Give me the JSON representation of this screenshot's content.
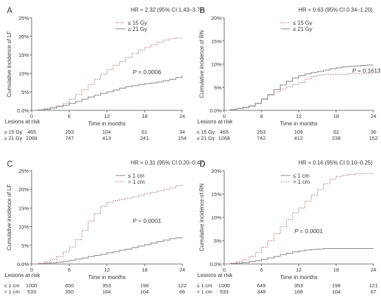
{
  "colors": {
    "line_low": "#858585",
    "line_high": "#b87a7e",
    "axis": "#444444",
    "text": "#333333"
  },
  "chart_data": [
    {
      "type": "line",
      "panel_label": "A",
      "hr_text": "HR = 2.32 (95% CI 1.43–3.77)",
      "p_value": "P = 0.0006",
      "ylabel": "Cumulative incidence of LF",
      "xlabel": "Time in months",
      "xlim": [
        0,
        24
      ],
      "ylim": [
        0,
        25
      ],
      "x_ticks": [
        0,
        6,
        12,
        18,
        24
      ],
      "y_ticks": [
        0,
        5,
        10,
        15,
        20,
        25
      ],
      "y_tick_labels": [
        "0.0%",
        "5%",
        "10%",
        "15%",
        "20%",
        "25%"
      ],
      "series": [
        {
          "name": "≤ 15 Gy",
          "style": "dashed",
          "x": [
            0,
            1,
            2,
            3,
            4,
            5,
            6,
            7,
            8,
            9,
            10,
            11,
            12,
            13,
            14,
            15,
            16,
            17,
            18,
            19,
            20,
            21,
            22,
            23,
            24
          ],
          "y": [
            0,
            0.2,
            0.5,
            0.9,
            1.3,
            1.9,
            3,
            4.3,
            5.6,
            7,
            8.4,
            9.8,
            11,
            12.2,
            13.2,
            14.3,
            15.4,
            16.3,
            17,
            17.7,
            18.4,
            19,
            19.4,
            19.6,
            19.7
          ]
        },
        {
          "name": "≥ 21 Gy",
          "style": "solid",
          "x": [
            0,
            1,
            2,
            3,
            4,
            5,
            6,
            7,
            8,
            9,
            10,
            11,
            12,
            13,
            14,
            15,
            16,
            17,
            18,
            19,
            20,
            21,
            22,
            23,
            24
          ],
          "y": [
            0,
            0.1,
            0.3,
            0.6,
            1,
            1.4,
            1.9,
            2.4,
            3,
            3.6,
            4.1,
            4.6,
            5,
            5.5,
            6,
            6.4,
            6.7,
            7,
            7.2,
            7.4,
            7.7,
            8,
            8.4,
            8.9,
            9.4
          ]
        }
      ],
      "risk_table": {
        "title": "Lesions at risk",
        "rows": [
          {
            "label": "≤ 15 Gy",
            "values": [
              "465",
              "253",
              "104",
              "61",
              "34"
            ]
          },
          {
            "label": "≥ 21 Gy",
            "values": [
              "1068",
              "747",
              "413",
              "241",
              "154"
            ]
          }
        ]
      }
    },
    {
      "type": "line",
      "panel_label": "B",
      "hr_text": "HR = 0.63 (95% CI 0.34–1.20)",
      "p_value": "P = 0.1613",
      "ylabel": "Cumulative incidence of RN",
      "xlabel": "Time in months",
      "xlim": [
        0,
        24
      ],
      "ylim": [
        0,
        20
      ],
      "x_ticks": [
        0,
        6,
        12,
        18,
        24
      ],
      "y_ticks": [
        0,
        5,
        10,
        15,
        20
      ],
      "y_tick_labels": [
        "0.0%",
        "5%",
        "10%",
        "15%",
        "20%"
      ],
      "series": [
        {
          "name": "≤ 15 Gy",
          "style": "dashed",
          "x": [
            0,
            1,
            2,
            3,
            4,
            5,
            6,
            7,
            8,
            9,
            10,
            11,
            12,
            13,
            14,
            15,
            16,
            17,
            18,
            19,
            20,
            21,
            22,
            23,
            24
          ],
          "y": [
            0,
            0.2,
            0.4,
            0.7,
            1,
            1.6,
            2.5,
            3.3,
            4,
            4.6,
            5.1,
            5.6,
            6,
            6.8,
            7.3,
            7.6,
            7.8,
            7.8,
            7.8,
            7.8,
            7.9,
            7.9,
            7.9,
            7.9,
            7.9
          ]
        },
        {
          "name": "≥ 21 Gy",
          "style": "solid",
          "x": [
            0,
            1,
            2,
            3,
            4,
            5,
            6,
            7,
            8,
            9,
            10,
            11,
            12,
            13,
            14,
            15,
            16,
            17,
            18,
            19,
            20,
            21,
            22,
            23,
            24
          ],
          "y": [
            0,
            0.2,
            0.4,
            0.6,
            0.9,
            1.5,
            2.4,
            3.4,
            4.5,
            5.5,
            6.3,
            7,
            7.5,
            7.9,
            8.2,
            8.4,
            8.7,
            9,
            9.2,
            9.4,
            9.5,
            9.6,
            9.7,
            9.8,
            9.8
          ]
        }
      ],
      "risk_table": {
        "title": "Lesions at risk",
        "rows": [
          {
            "label": "≤ 15 Gy",
            "values": [
              "465",
              "253",
              "109",
              "62",
              "36"
            ]
          },
          {
            "label": "≥ 21 Gy",
            "values": [
              "1068",
              "742",
              "412",
              "238",
              "152"
            ]
          }
        ]
      }
    },
    {
      "type": "line",
      "panel_label": "C",
      "hr_text": "HR = 0.31 (95% CI 0.20–0.47)",
      "p_value": "P < 0.0001",
      "ylabel": "Cumulative incidence of LF",
      "xlabel": "Time in months",
      "xlim": [
        0,
        24
      ],
      "ylim": [
        0,
        25
      ],
      "x_ticks": [
        0,
        6,
        12,
        18,
        24
      ],
      "y_ticks": [
        0,
        5,
        10,
        15,
        20,
        25
      ],
      "y_tick_labels": [
        "0.0%",
        "5%",
        "10%",
        "15%",
        "20%",
        "25%"
      ],
      "series": [
        {
          "name": "≤ 1 cm",
          "style": "solid",
          "x": [
            0,
            1,
            2,
            3,
            4,
            5,
            6,
            7,
            8,
            9,
            10,
            11,
            12,
            13,
            14,
            15,
            16,
            17,
            18,
            19,
            20,
            21,
            22,
            23,
            24
          ],
          "y": [
            0,
            0.1,
            0.2,
            0.3,
            0.5,
            0.7,
            1,
            1.3,
            1.6,
            2,
            2.3,
            2.6,
            3,
            3.3,
            3.7,
            4,
            4.4,
            4.8,
            5.2,
            5.6,
            6,
            6.4,
            6.8,
            7,
            7.1
          ]
        },
        {
          "name": "> 1 cm",
          "style": "dashed",
          "x": [
            0,
            1,
            2,
            3,
            4,
            5,
            6,
            7,
            8,
            9,
            10,
            11,
            12,
            13,
            14,
            15,
            16,
            17,
            18,
            19,
            20,
            21,
            22,
            23,
            24
          ],
          "y": [
            0,
            0.2,
            0.6,
            1.2,
            2,
            3.2,
            4.6,
            6.5,
            9,
            11.5,
            13.5,
            15.5,
            16.5,
            17,
            17.3,
            17.6,
            18,
            18.4,
            18.8,
            19.2,
            19.6,
            20,
            20.4,
            21,
            21.5
          ]
        }
      ],
      "risk_table": {
        "title": "Lesions at risk",
        "rows": [
          {
            "label": "≤ 1 cm",
            "values": [
              "1000",
              "650",
              "353",
              "198",
              "122"
            ]
          },
          {
            "label": "> 1 cm",
            "values": [
              "533",
              "350",
              "164",
              "104",
              "66"
            ]
          }
        ]
      }
    },
    {
      "type": "line",
      "panel_label": "D",
      "hr_text": "HR = 0.16 (95% CI 0.10–0.25)",
      "p_value": "P = 0.0001",
      "ylabel": "Cumulative incidence of RN",
      "xlabel": "Time in months",
      "xlim": [
        0,
        24
      ],
      "ylim": [
        0,
        20
      ],
      "x_ticks": [
        0,
        6,
        12,
        18,
        24
      ],
      "y_ticks": [
        0,
        5,
        10,
        15,
        20
      ],
      "y_tick_labels": [
        "0.0%",
        "5%",
        "10%",
        "15%",
        "20%"
      ],
      "series": [
        {
          "name": "≤ 1 cm",
          "style": "solid",
          "x": [
            0,
            1,
            2,
            3,
            4,
            5,
            6,
            7,
            8,
            9,
            10,
            11,
            12,
            13,
            14,
            15,
            16,
            17,
            18,
            19,
            20,
            21,
            22,
            23,
            24
          ],
          "y": [
            0,
            0.1,
            0.2,
            0.3,
            0.5,
            0.7,
            1,
            1.3,
            1.6,
            2,
            2.3,
            2.6,
            2.8,
            3,
            3.1,
            3.2,
            3.3,
            3.3,
            3.3,
            3.3,
            3.3,
            3.3,
            3.3,
            3.3,
            3.3
          ]
        },
        {
          "name": "> 1 cm",
          "style": "dashed",
          "x": [
            0,
            1,
            2,
            3,
            4,
            5,
            6,
            7,
            8,
            9,
            10,
            11,
            12,
            13,
            14,
            15,
            16,
            17,
            18,
            19,
            20,
            21,
            22,
            23,
            24
          ],
          "y": [
            0,
            0.2,
            0.5,
            1,
            1.6,
            2.5,
            3.6,
            5,
            6.5,
            8,
            9.5,
            11,
            12,
            13.5,
            14.8,
            16,
            17.2,
            18.2,
            18.8,
            19,
            19.2,
            19.3,
            19.4,
            19.4,
            19.4
          ]
        }
      ],
      "risk_table": {
        "title": "Lesions at risk",
        "rows": [
          {
            "label": "≤ 1 cm",
            "values": [
              "1000",
              "649",
              "353",
              "196",
              "121"
            ]
          },
          {
            "label": "> 1 cm",
            "values": [
              "533",
              "348",
              "168",
              "104",
              "67"
            ]
          }
        ]
      }
    }
  ]
}
